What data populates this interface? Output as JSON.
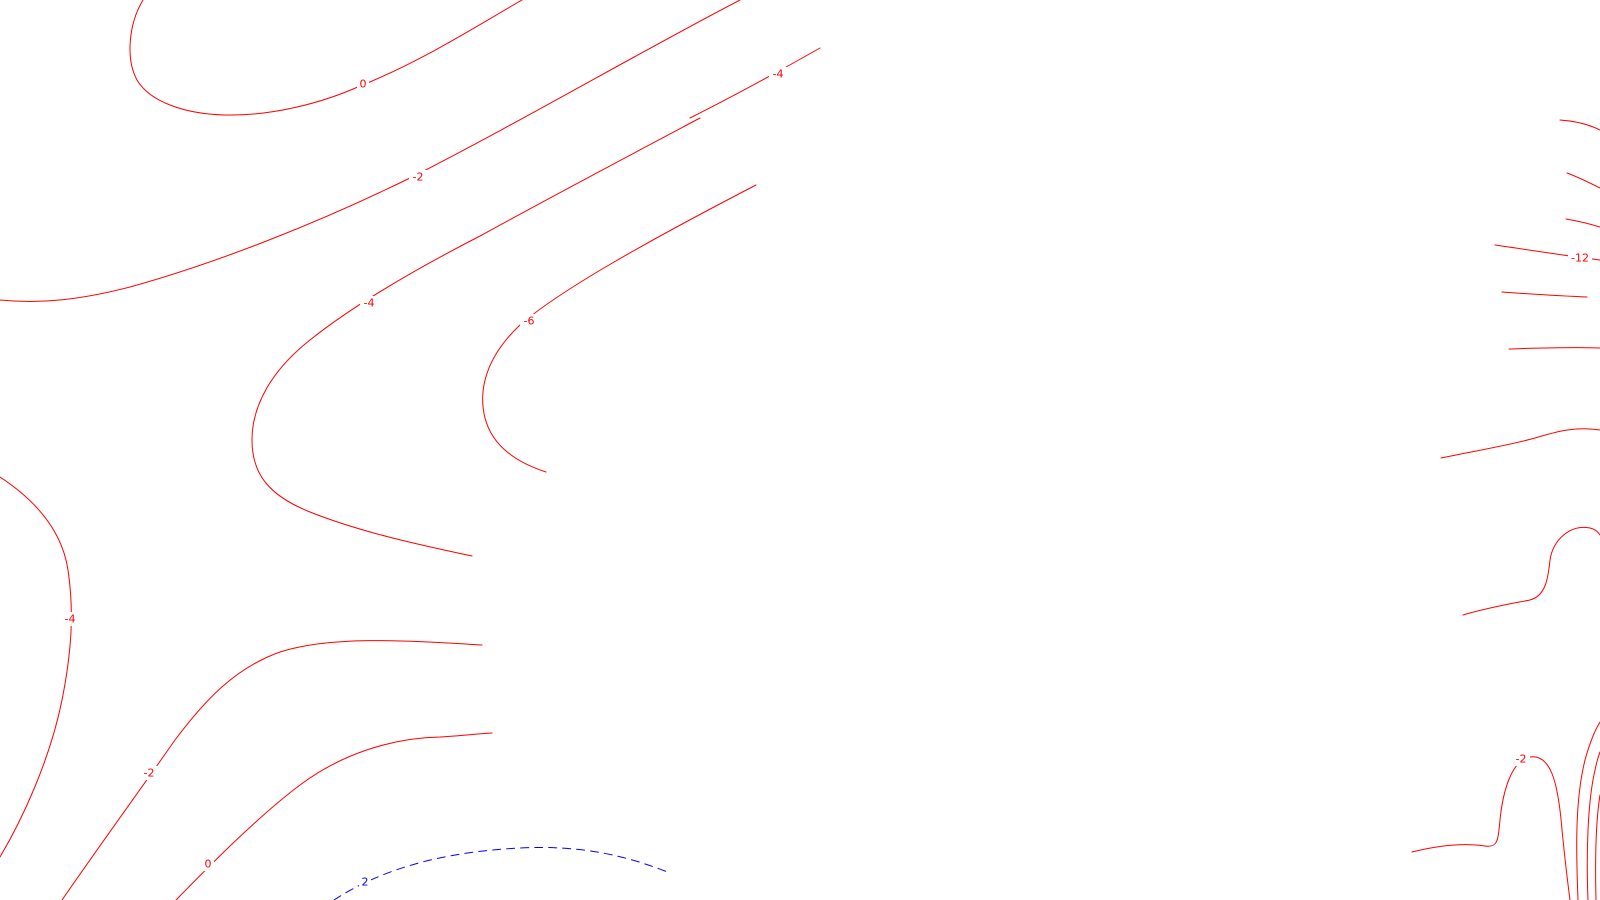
{
  "map": {
    "colors": {
      "background": "#ffffff",
      "positive_contour": "#ff0000",
      "negative_contour": "#0000ff"
    },
    "contours": [
      {
        "name": "contour-0-top-left",
        "level": "0",
        "color": "#ff0000",
        "dashed": false
      },
      {
        "name": "contour-neg2-top",
        "level": "-2",
        "color": "#ff0000",
        "dashed": false
      },
      {
        "name": "contour-neg4-upper-right",
        "level": "-4",
        "color": "#ff0000",
        "dashed": false
      },
      {
        "name": "contour-neg4-mid",
        "level": "-4",
        "color": "#ff0000",
        "dashed": false
      },
      {
        "name": "contour-neg6",
        "level": "-6",
        "color": "#ff0000",
        "dashed": false
      },
      {
        "name": "contour-neg4-left",
        "level": "-4",
        "color": "#ff0000",
        "dashed": false
      },
      {
        "name": "contour-neg2-lower-left",
        "level": "-2",
        "color": "#ff0000",
        "dashed": false
      },
      {
        "name": "contour-0-lower-left",
        "level": "0",
        "color": "#ff0000",
        "dashed": false
      },
      {
        "name": "contour-2-bottom-dashed",
        "level": "2",
        "color": "#0000ff",
        "dashed": true
      },
      {
        "name": "contour-right-12-a",
        "level": "",
        "color": "#ff0000",
        "dashed": false
      },
      {
        "name": "contour-right-12-b",
        "level": "",
        "color": "#ff0000",
        "dashed": false
      },
      {
        "name": "contour-right-12-c",
        "level": "",
        "color": "#ff0000",
        "dashed": false
      },
      {
        "name": "contour-neg12",
        "level": "-12",
        "color": "#ff0000",
        "dashed": false
      },
      {
        "name": "contour-right-d",
        "level": "",
        "color": "#ff0000",
        "dashed": false
      },
      {
        "name": "contour-right-e",
        "level": "",
        "color": "#ff0000",
        "dashed": false
      },
      {
        "name": "contour-right-f",
        "level": "",
        "color": "#ff0000",
        "dashed": false
      },
      {
        "name": "contour-right-g",
        "level": "",
        "color": "#ff0000",
        "dashed": false
      },
      {
        "name": "contour-neg2-lower-right",
        "level": "-2",
        "color": "#ff0000",
        "dashed": false
      },
      {
        "name": "contour-right-h",
        "level": "",
        "color": "#ff0000",
        "dashed": false
      },
      {
        "name": "contour-right-i",
        "level": "",
        "color": "#ff0000",
        "dashed": false
      },
      {
        "name": "contour-right-j",
        "level": "",
        "color": "#ff0000",
        "dashed": false
      }
    ]
  }
}
